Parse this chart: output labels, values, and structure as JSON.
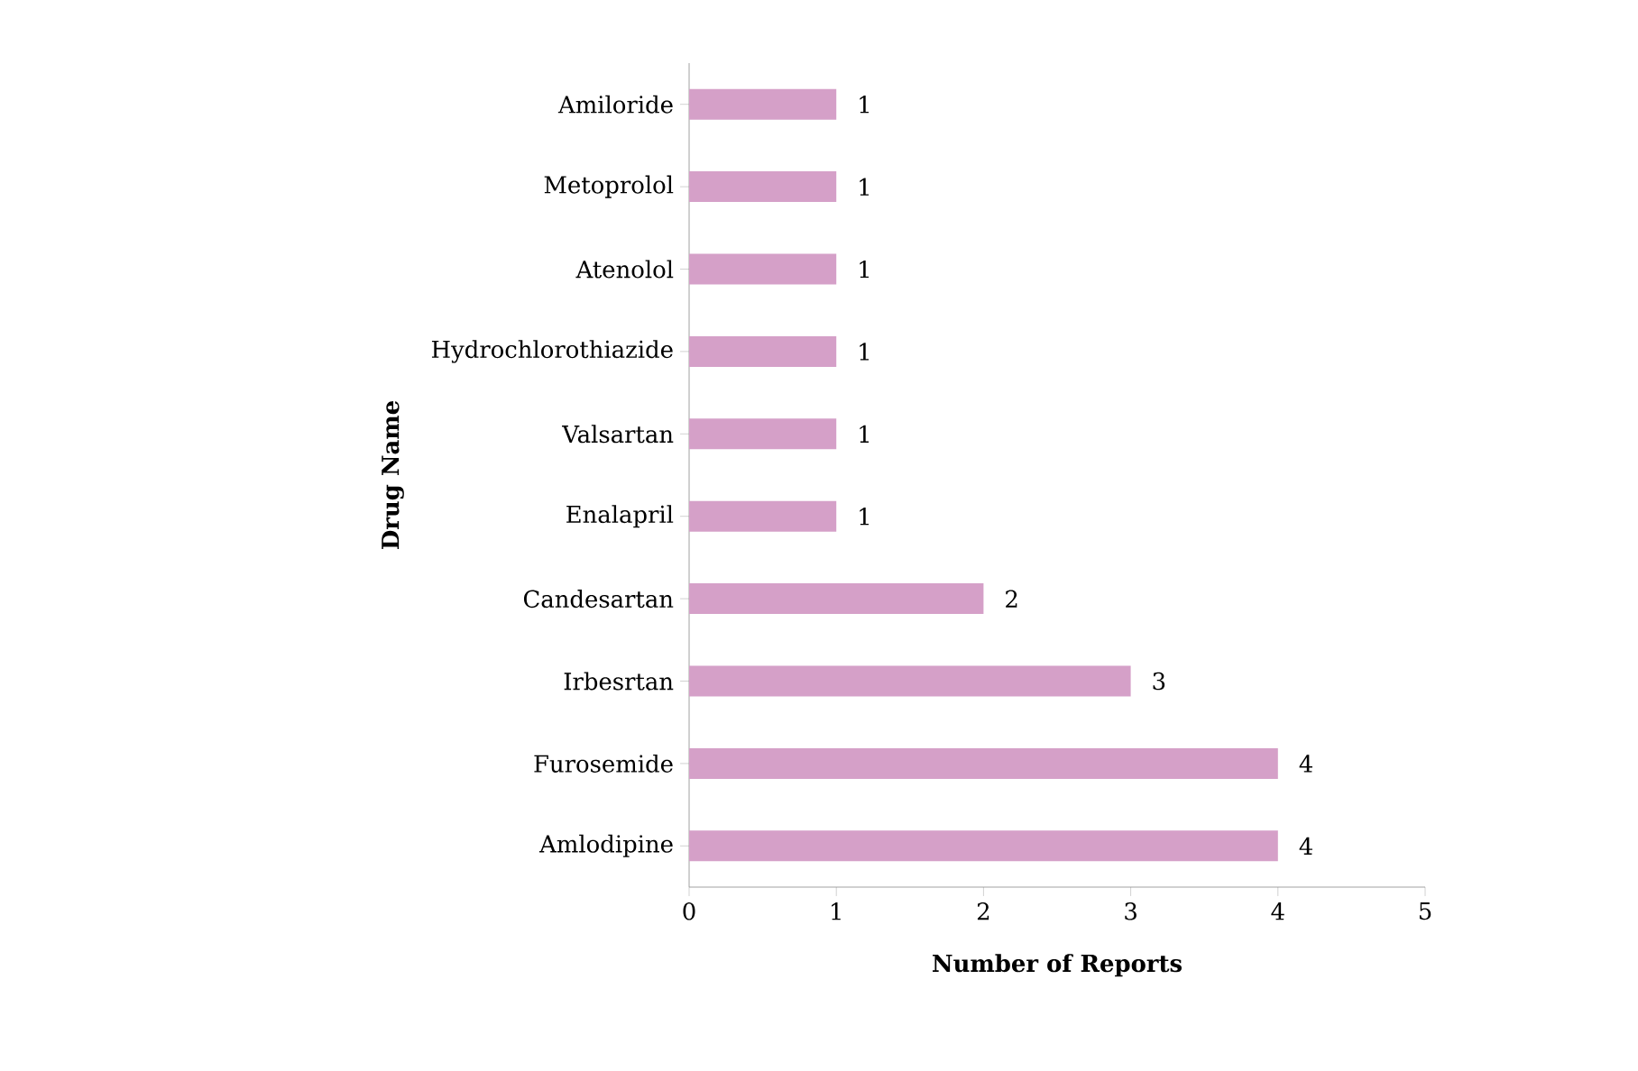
{
  "chart_data": {
    "type": "bar",
    "orientation": "horizontal",
    "xlabel": "Number of Reports",
    "ylabel": "Drug Name",
    "categories": [
      "Amiloride",
      "Metoprolol",
      "Atenolol",
      "Hydrochlorothiazide",
      "Valsartan",
      "Enalapril",
      "Candesartan",
      "Irbesrtan",
      "Furosemide",
      "Amlodipine"
    ],
    "values": [
      1,
      1,
      1,
      1,
      1,
      1,
      2,
      3,
      4,
      4
    ],
    "color": "#d5a0c8",
    "xlim": [
      0,
      5
    ],
    "xticks": [
      0,
      1,
      2,
      3,
      4,
      5
    ],
    "data_labels": true
  }
}
